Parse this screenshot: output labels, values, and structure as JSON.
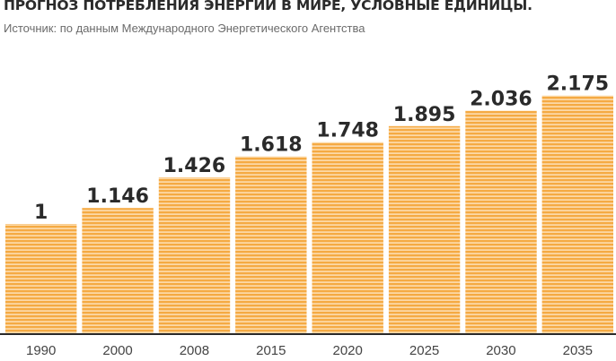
{
  "chart_data": {
    "type": "bar",
    "title": "ПРОГНОЗ ПОТРЕБЛЕНИЯ ЭНЕРГИИ В МИРЕ, УСЛОВНЫЕ ЕДИНИЦЫ.",
    "subtitle": "Источник: по данным Международного Энергетического Агентства",
    "categories": [
      "1990",
      "2000",
      "2008",
      "2015",
      "2020",
      "2025",
      "2030",
      "2035"
    ],
    "values": [
      1,
      1.146,
      1.426,
      1.618,
      1.748,
      1.895,
      2.036,
      2.175
    ],
    "value_labels": [
      "1",
      "1.146",
      "1.426",
      "1.618",
      "1.748",
      "1.895",
      "2.036",
      "2.175"
    ],
    "xlabel": "",
    "ylabel": "",
    "grid": false,
    "colors": {
      "bar": "#f5aa43",
      "stripe": "#ffffff",
      "axis": "#2a2a2a",
      "text": "#2a2a2a"
    }
  }
}
